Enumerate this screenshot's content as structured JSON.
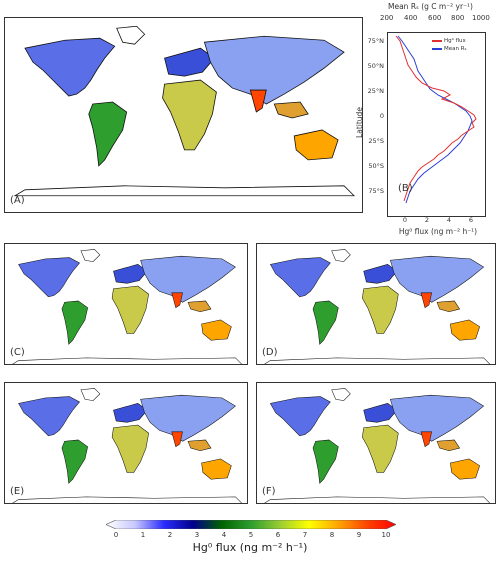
{
  "panels": [
    {
      "id": "A",
      "label": "(A)"
    },
    {
      "id": "C",
      "label": "(C)"
    },
    {
      "id": "D",
      "label": "(D)"
    },
    {
      "id": "E",
      "label": "(E)"
    },
    {
      "id": "F",
      "label": "(F)"
    }
  ],
  "profile": {
    "label": "(B)",
    "top_axis_title": "Mean Rₛ (g C m⁻² yr⁻¹)",
    "top_ticks": [
      "200",
      "400",
      "600",
      "800",
      "1000"
    ],
    "xlabel": "Hg⁰ flux (ng m⁻² h⁻¹)",
    "x_ticks": [
      "0",
      "2",
      "4",
      "6"
    ],
    "ylabel": "Latitude",
    "y_ticks": [
      "75°N",
      "50°N",
      "25°N",
      "0",
      "25°S",
      "50°S",
      "75°S"
    ],
    "legend": [
      {
        "name": "Hg⁰ flux",
        "color": "#e03030"
      },
      {
        "name": "Mean Rₛ",
        "color": "#2b3fd6"
      }
    ]
  },
  "colorbar": {
    "ticks": [
      "0",
      "1",
      "2",
      "3",
      "4",
      "5",
      "6",
      "7",
      "8",
      "9",
      "10"
    ],
    "title": "Hg⁰ flux (ng m⁻² h⁻¹)",
    "colors": [
      "#ffffff",
      "#c8c8ff",
      "#2a2cff",
      "#00008b",
      "#006400",
      "#2e9e2e",
      "#9acd32",
      "#ffff00",
      "#ffa500",
      "#ff4500",
      "#ff0000"
    ]
  }
}
